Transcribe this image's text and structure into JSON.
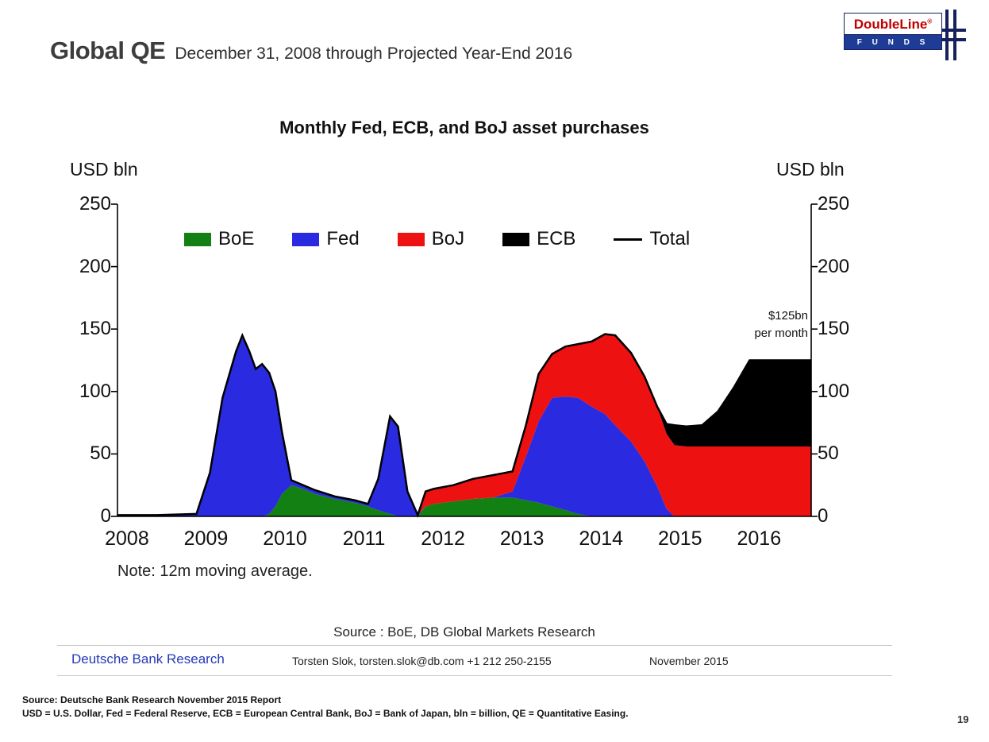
{
  "slide": {
    "title": "Global QE",
    "subtitle": "December 31, 2008 through Projected Year-End 2016",
    "page_number": "19",
    "footnote_line1": "Source: Deutsche Bank Research November 2015 Report",
    "footnote_line2": "USD = U.S. Dollar, Fed = Federal Reserve, ECB = European Central Bank, BoJ = Bank of Japan, bln = billion, QE = Quantitative Easing."
  },
  "logo": {
    "brand": "DoubleLine",
    "registered": "®",
    "funds_letters": "F U N D S",
    "brand_color": "#c00000",
    "bar_color": "#1e3c96"
  },
  "footer": {
    "source_line": "Source : BoE, DB Global Markets Research",
    "research_label": "Deutsche Bank Research",
    "contact": "Torsten Slok, torsten.slok@db.com  +1 212 250-2155",
    "date": "November 2015"
  },
  "chart_data": {
    "type": "area",
    "stacked": true,
    "title": "Monthly Fed, ECB, and BoJ asset purchases",
    "note": "Note: 12m moving average.",
    "ylabel_left": "USD bln",
    "ylabel_right": "USD bln",
    "ylim": [
      0,
      250
    ],
    "ytick_step": 50,
    "xlim": [
      2008,
      2016.78
    ],
    "xticks": [
      2008,
      2009,
      2010,
      2011,
      2012,
      2013,
      2014,
      2015,
      2016
    ],
    "legend_position": "top-inside",
    "grid": false,
    "x": [
      2008.0,
      2008.5,
      2009.0,
      2009.17,
      2009.33,
      2009.5,
      2009.58,
      2009.67,
      2009.75,
      2009.83,
      2009.92,
      2010.0,
      2010.08,
      2010.2,
      2010.35,
      2010.5,
      2010.75,
      2011.0,
      2011.17,
      2011.3,
      2011.45,
      2011.55,
      2011.67,
      2011.8,
      2011.9,
      2012.0,
      2012.25,
      2012.5,
      2012.75,
      2013.0,
      2013.17,
      2013.33,
      2013.5,
      2013.67,
      2013.83,
      2014.0,
      2014.17,
      2014.3,
      2014.5,
      2014.67,
      2014.83,
      2014.95,
      2015.05,
      2015.2,
      2015.4,
      2015.6,
      2015.8,
      2016.0,
      2016.4,
      2016.78
    ],
    "series": [
      {
        "name": "BoE",
        "color": "#128012",
        "values": [
          0,
          0,
          0,
          0,
          0,
          0,
          0,
          0,
          0,
          0,
          2,
          8,
          18,
          25,
          22,
          18,
          14,
          11,
          8,
          5,
          2,
          0,
          0,
          0,
          8,
          10,
          12,
          14,
          15,
          15,
          13,
          11,
          8,
          5,
          2,
          0,
          0,
          0,
          0,
          0,
          0,
          0,
          0,
          0,
          0,
          0,
          0,
          0,
          0,
          0
        ]
      },
      {
        "name": "Fed",
        "color": "#2a2ae0",
        "values": [
          1,
          1,
          2,
          35,
          95,
          132,
          145,
          132,
          118,
          122,
          113,
          92,
          50,
          4,
          3,
          3,
          2,
          2,
          2,
          25,
          78,
          72,
          20,
          1,
          0,
          0,
          0,
          0,
          0,
          5,
          35,
          65,
          87,
          91,
          93,
          88,
          82,
          73,
          60,
          44,
          24,
          6,
          0,
          0,
          0,
          0,
          0,
          0,
          0,
          0
        ]
      },
      {
        "name": "BoJ",
        "color": "#ee1111",
        "values": [
          0,
          0,
          0,
          0,
          0,
          0,
          0,
          0,
          0,
          0,
          0,
          0,
          0,
          0,
          0,
          0,
          0,
          0,
          0,
          0,
          0,
          0,
          0,
          0,
          12,
          12,
          13,
          16,
          18,
          16,
          25,
          38,
          35,
          40,
          43,
          52,
          64,
          72,
          71,
          68,
          64,
          60,
          57,
          56,
          56,
          56,
          56,
          56,
          56,
          56
        ]
      },
      {
        "name": "ECB",
        "color": "#000000",
        "values": [
          0,
          0,
          0,
          0,
          0,
          0,
          0,
          0,
          0,
          0,
          0,
          0,
          0,
          0,
          0,
          0,
          0,
          0,
          0,
          0,
          0,
          0,
          0,
          0,
          0,
          0,
          0,
          0,
          0,
          0,
          0,
          0,
          0,
          0,
          0,
          0,
          0,
          0,
          0,
          0,
          0,
          8,
          16,
          16,
          17,
          28,
          47,
          69,
          69,
          69
        ]
      }
    ],
    "total_line": {
      "name": "Total",
      "color": "#000000"
    },
    "annotation": {
      "lines": [
        "$125bn",
        "per month"
      ],
      "x": 2016.2,
      "y": 150
    }
  }
}
